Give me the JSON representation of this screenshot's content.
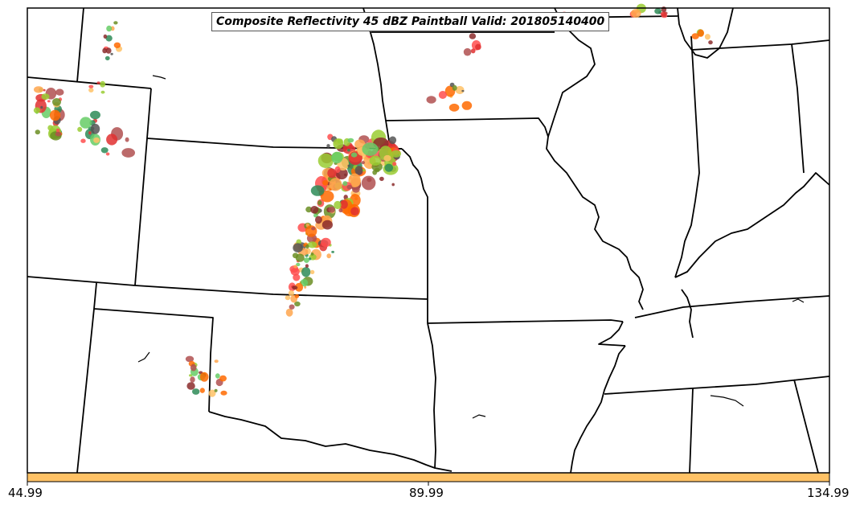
{
  "title": "Composite Reflectivity 45 dBZ Paintball Valid: 201805140400",
  "colorbar": {
    "fill_color": "#ffc266",
    "ticks": [
      "44.99",
      "89.99",
      "134.99"
    ]
  },
  "colors": {
    "state_boundary": "#000000",
    "frame": "#000000",
    "paintball_palette": [
      "#ff4d4d",
      "#ff6a00",
      "#ffa64d",
      "#ffc266",
      "#66cc66",
      "#6b8e23",
      "#2e8b57",
      "#b05050",
      "#8b2c2c",
      "#555555",
      "#9acd32",
      "#e03030"
    ]
  },
  "map": {
    "region": "Central United States",
    "features": [
      "state-boundaries",
      "paintball-reflectivity-cells",
      "colorbar"
    ]
  }
}
